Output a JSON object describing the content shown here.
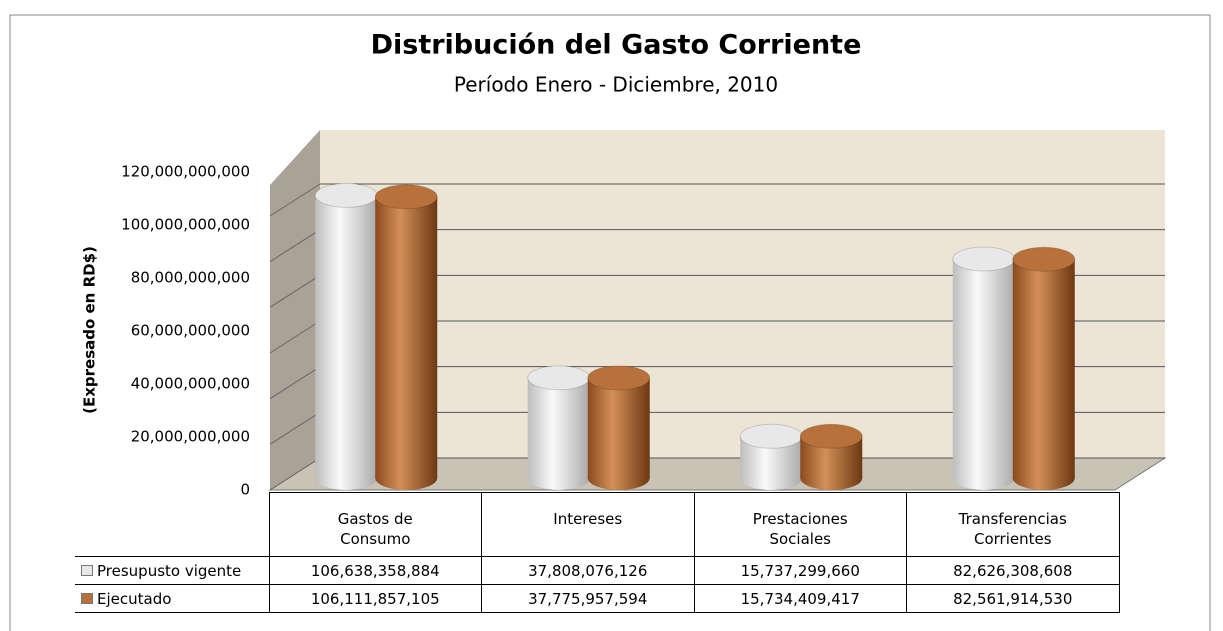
{
  "chart_data": {
    "type": "bar",
    "title": "Distribución del Gasto Corriente",
    "subtitle": "Período Enero - Diciembre, 2010",
    "y_axis_label": "(Expresado en RD$)",
    "categories": [
      "Gastos de Consumo",
      "Intereses",
      "Prestaciones Sociales",
      "Transferencias Corrientes"
    ],
    "series": [
      {
        "name": "Presupusto vigente",
        "color": "#e8e8e8",
        "values": [
          106638358884,
          37808076126,
          15737299660,
          82626308608
        ],
        "value_labels": [
          "106,638,358,884",
          "37,808,076,126",
          "15,737,299,660",
          "82,626,308,608"
        ]
      },
      {
        "name": "Ejecutado",
        "color": "#b8713a",
        "values": [
          106111857105,
          37775957594,
          15734409417,
          82561914530
        ],
        "value_labels": [
          "106,111,857,105",
          "37,775,957,594",
          "15,734,409,417",
          "82,561,914,530"
        ]
      }
    ],
    "ylim": [
      0,
      120000000000
    ],
    "yticks": [
      0,
      {
        "value": 20000000000,
        "label": "20,000,000,000"
      },
      {
        "value": 40000000000,
        "label": "40,000,000,000"
      },
      {
        "value": 60000000000,
        "label": "60,000,000,000"
      },
      {
        "value": 80000000000,
        "label": "80,000,000,000"
      },
      {
        "value": 100000000000,
        "label": "100,000,000,000"
      },
      {
        "value": 120000000000,
        "label": "120,000,000,000"
      }
    ],
    "grid": true
  }
}
